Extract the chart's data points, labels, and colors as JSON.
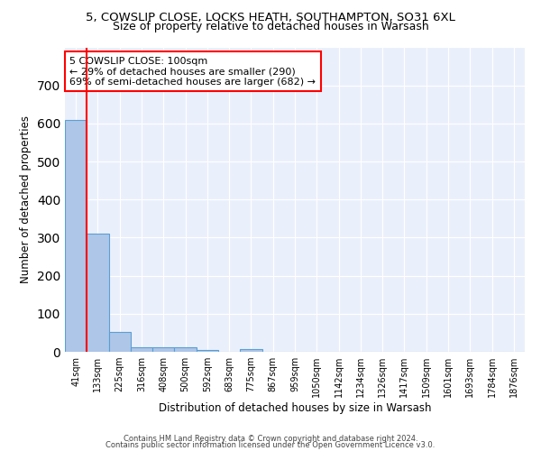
{
  "title": "5, COWSLIP CLOSE, LOCKS HEATH, SOUTHAMPTON, SO31 6XL",
  "subtitle": "Size of property relative to detached houses in Warsash",
  "xlabel": "Distribution of detached houses by size in Warsash",
  "ylabel": "Number of detached properties",
  "bin_labels": [
    "41sqm",
    "133sqm",
    "225sqm",
    "316sqm",
    "408sqm",
    "500sqm",
    "592sqm",
    "683sqm",
    "775sqm",
    "867sqm",
    "959sqm",
    "1050sqm",
    "1142sqm",
    "1234sqm",
    "1326sqm",
    "1417sqm",
    "1509sqm",
    "1601sqm",
    "1693sqm",
    "1784sqm",
    "1876sqm"
  ],
  "bar_values": [
    609,
    310,
    52,
    12,
    13,
    11,
    5,
    0,
    7,
    0,
    0,
    0,
    0,
    0,
    0,
    0,
    0,
    0,
    0,
    0,
    0
  ],
  "bar_color": "#aec6e8",
  "bar_edge_color": "#5a9fd4",
  "red_line_bin_index": 1,
  "annotation_text": "5 COWSLIP CLOSE: 100sqm\n← 29% of detached houses are smaller (290)\n69% of semi-detached houses are larger (682) →",
  "annotation_fontsize": 8,
  "ylim": [
    0,
    800
  ],
  "yticks": [
    0,
    100,
    200,
    300,
    400,
    500,
    600,
    700
  ],
  "background_color": "#eaf0fb",
  "grid_color": "#ffffff",
  "footer1": "Contains HM Land Registry data © Crown copyright and database right 2024.",
  "footer2": "Contains public sector information licensed under the Open Government Licence v3.0.",
  "title_fontsize": 9.5,
  "subtitle_fontsize": 9
}
